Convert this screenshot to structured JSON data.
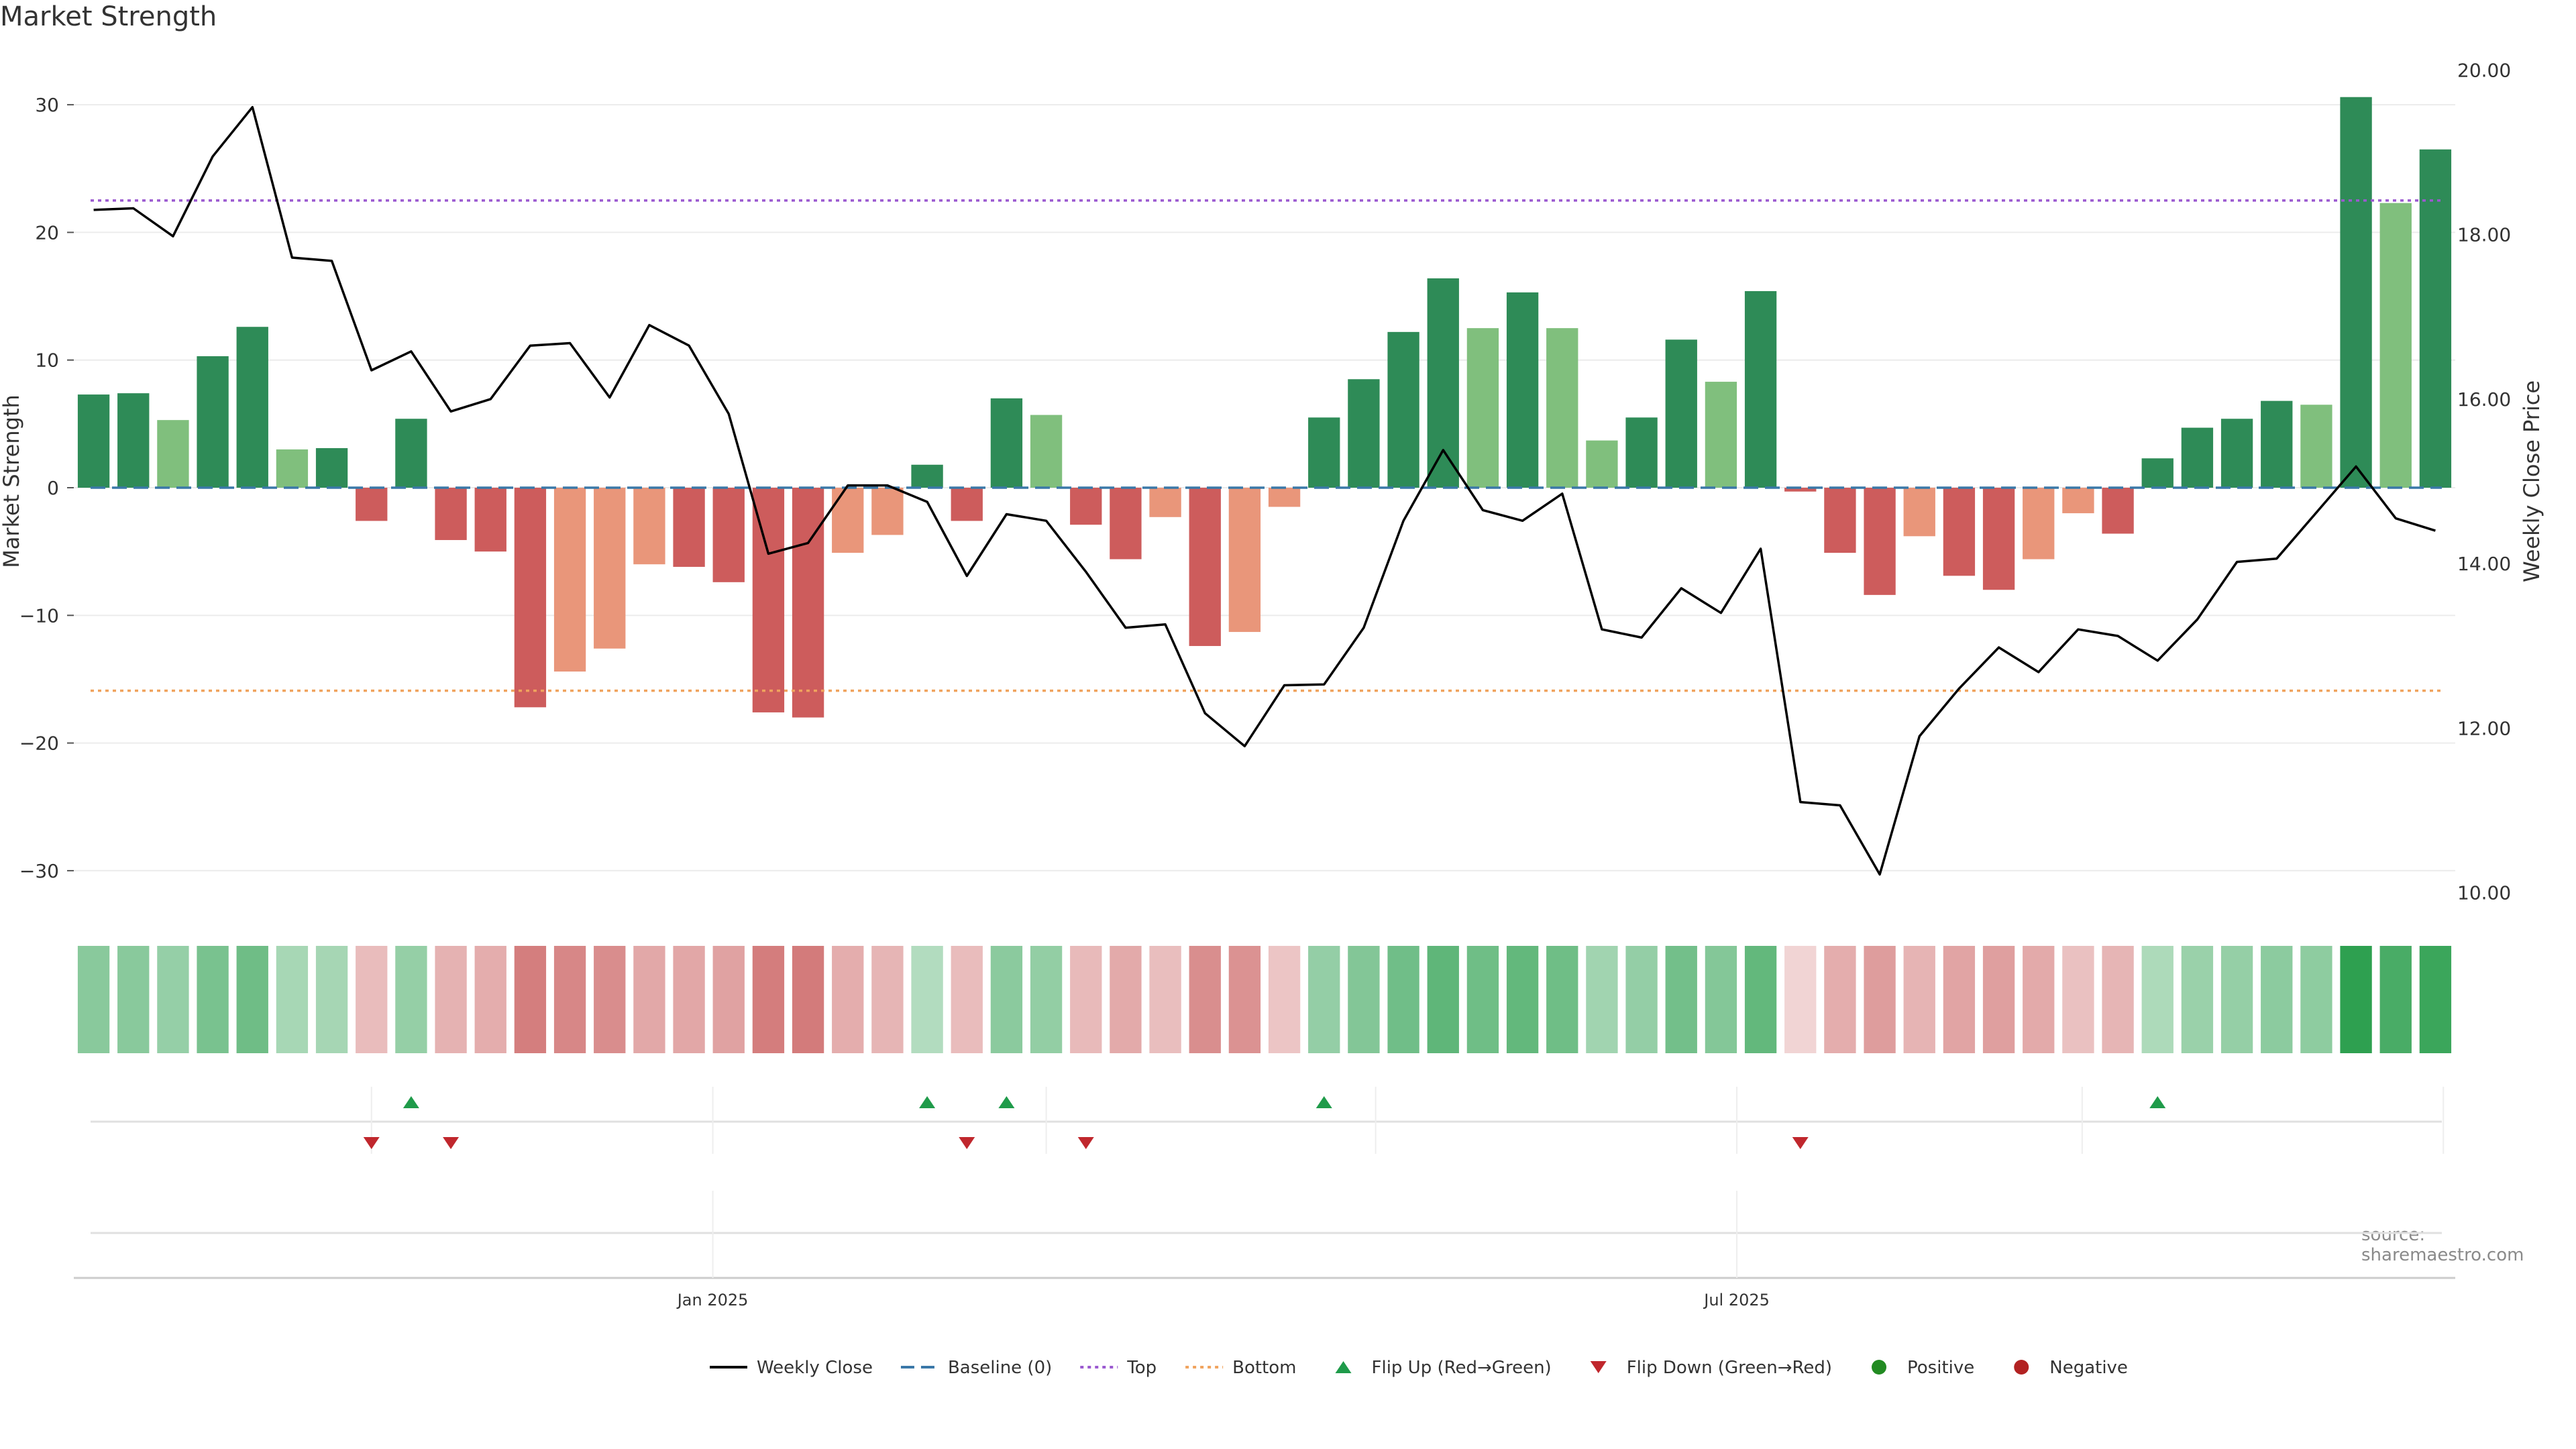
{
  "chart_data": {
    "type": "bar",
    "title": "Market Strength",
    "source": "source: sharemaestro.com",
    "ylabel_left": "Market Strength",
    "ylabel_right": "Weekly Close Price",
    "ylim_left": [
      -33,
      34
    ],
    "ylim_right": [
      9.8,
      20.2
    ],
    "yticks_left": [
      "30",
      "20",
      "10",
      "0",
      "−10",
      "−20",
      "−30"
    ],
    "yticks_left_values": [
      30,
      20,
      10,
      0,
      -10,
      -20,
      -30
    ],
    "yticks_right": [
      "20.00",
      "18.00",
      "16.00",
      "14.00",
      "12.00",
      "10.00"
    ],
    "yticks_right_values": [
      20,
      18,
      16,
      14,
      12,
      10
    ],
    "date_ticks": [
      {
        "label": "Jan 2025",
        "index": 15.6
      },
      {
        "label": "Jul 2025",
        "index": 41.4
      }
    ],
    "top_line": 22.5,
    "bottom_line": -15.9,
    "strength": [
      7.3,
      7.4,
      5.3,
      10.3,
      12.6,
      3.0,
      3.1,
      -2.6,
      5.4,
      -4.1,
      -5.0,
      -17.2,
      -14.4,
      -12.6,
      -6.0,
      -6.2,
      -7.4,
      -17.6,
      -18.0,
      -5.1,
      -3.7,
      1.8,
      -2.6,
      7.0,
      5.7,
      -2.9,
      -5.6,
      -2.3,
      -12.4,
      -11.3,
      -1.5,
      5.5,
      8.5,
      12.2,
      16.4,
      12.5,
      15.3,
      12.5,
      3.7,
      5.5,
      11.6,
      8.3,
      15.4,
      -0.3,
      -5.1,
      -8.4,
      -3.8,
      -6.9,
      -8.0,
      -5.6,
      -2.0,
      -3.6,
      2.3,
      4.7,
      5.4,
      6.8,
      6.5,
      30.6,
      22.3,
      26.5
    ],
    "weekly_close": [
      18.3,
      18.32,
      17.98,
      18.95,
      19.55,
      17.72,
      17.68,
      16.35,
      16.58,
      15.85,
      16.0,
      16.65,
      16.68,
      16.02,
      16.9,
      16.65,
      15.82,
      14.12,
      14.25,
      14.95,
      14.95,
      14.75,
      13.85,
      14.6,
      14.52,
      13.9,
      13.22,
      13.26,
      12.18,
      11.78,
      12.52,
      12.53,
      13.22,
      14.52,
      15.38,
      14.65,
      14.52,
      14.85,
      13.2,
      13.1,
      13.7,
      13.4,
      14.18,
      11.1,
      11.06,
      10.22,
      11.9,
      12.48,
      12.98,
      12.68,
      13.2,
      13.12,
      12.82,
      13.32,
      14.02,
      14.06,
      14.62,
      15.18,
      14.55,
      14.4
    ],
    "bar_colors": [
      "#2e8b57",
      "#2e8b57",
      "#80bf7d",
      "#2e8b57",
      "#2e8b57",
      "#80bf7d",
      "#2e8b57",
      "#cd5c5c",
      "#2e8b57",
      "#cd5c5c",
      "#cd5c5c",
      "#cd5c5c",
      "#e9967a",
      "#e9967a",
      "#e9967a",
      "#cd5c5c",
      "#cd5c5c",
      "#cd5c5c",
      "#cd5c5c",
      "#e9967a",
      "#e9967a",
      "#2e8b57",
      "#cd5c5c",
      "#2e8b57",
      "#80bf7d",
      "#cd5c5c",
      "#cd5c5c",
      "#e9967a",
      "#cd5c5c",
      "#e9967a",
      "#e9967a",
      "#2e8b57",
      "#2e8b57",
      "#2e8b57",
      "#2e8b57",
      "#80bf7d",
      "#2e8b57",
      "#80bf7d",
      "#80bf7d",
      "#2e8b57",
      "#2e8b57",
      "#80bf7d",
      "#2e8b57",
      "#cd5c5c",
      "#cd5c5c",
      "#cd5c5c",
      "#e9967a",
      "#cd5c5c",
      "#cd5c5c",
      "#e9967a",
      "#e9967a",
      "#cd5c5c",
      "#2e8b57",
      "#2e8b57",
      "#2e8b57",
      "#2e8b57",
      "#80bf7d",
      "#2e8b57",
      "#80bf7d",
      "#2e8b57"
    ],
    "flip_up_indices": [
      8,
      21,
      23,
      31,
      52
    ],
    "flip_down_indices": [
      7,
      9,
      22,
      25,
      43
    ],
    "legend": [
      {
        "label": "Weekly Close",
        "kind": "line",
        "color": "#000000"
      },
      {
        "label": "Baseline (0)",
        "kind": "dash",
        "color": "#3a78a8"
      },
      {
        "label": "Top",
        "kind": "dot",
        "color": "#9b59d0"
      },
      {
        "label": "Bottom",
        "kind": "dot",
        "color": "#f0a35e"
      },
      {
        "label": "Flip Up (Red→Green)",
        "kind": "tri-up",
        "color": "#1f9b4a"
      },
      {
        "label": "Flip Down (Green→Red)",
        "kind": "tri-down",
        "color": "#c0272d"
      },
      {
        "label": "Positive",
        "kind": "circle",
        "color": "#228b22"
      },
      {
        "label": "Negative",
        "kind": "circle",
        "color": "#b22222"
      }
    ],
    "colors": {
      "baseline": "#3a78a8",
      "top": "#9b59d0",
      "bottom": "#f0a35e",
      "price": "#000000",
      "flip_up": "#1f9b4a",
      "flip_down": "#c0272d",
      "heat_pos": [
        46,
        160,
        80
      ],
      "heat_neg": [
        200,
        90,
        90
      ]
    }
  }
}
